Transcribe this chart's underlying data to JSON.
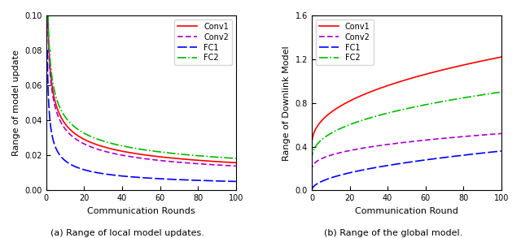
{
  "left": {
    "title": "(a) Range of local model updates.",
    "xlabel": "Communication Rounds",
    "ylabel": "Range of model update",
    "xlim": [
      0,
      100
    ],
    "ylim": [
      0,
      0.1
    ],
    "yticks": [
      0.0,
      0.02,
      0.04,
      0.06,
      0.08,
      0.1
    ],
    "xticks": [
      0,
      20,
      40,
      60,
      80,
      100
    ],
    "lines": [
      {
        "label": "Conv1",
        "color": "#ff0000",
        "linestyle": "-",
        "lw": 1.2,
        "a": 0.091,
        "k": 0.38
      },
      {
        "label": "Conv2",
        "color": "#aa00cc",
        "linestyle": "--",
        "lw": 1.2,
        "a": 0.088,
        "k": 0.4,
        "dashes": [
          4,
          2
        ]
      },
      {
        "label": "FC1",
        "color": "#0000ff",
        "linestyle": "--",
        "lw": 1.2,
        "a": 0.056,
        "k": 0.52,
        "dashes": [
          7,
          2
        ]
      },
      {
        "label": "FC2",
        "color": "#00bb00",
        "linestyle": "-.",
        "lw": 1.2,
        "a": 0.096,
        "k": 0.36
      }
    ]
  },
  "right": {
    "title": "(b) Range of the global model.",
    "xlabel": "Communication Round",
    "ylabel": "Range of Downlink Model",
    "xlim": [
      0,
      100
    ],
    "ylim": [
      0,
      1.6
    ],
    "yticks": [
      0,
      0.4,
      0.8,
      1.2,
      1.6
    ],
    "xticks": [
      0,
      20,
      40,
      60,
      80,
      100
    ],
    "lines": [
      {
        "label": "Conv1",
        "color": "#ff0000",
        "linestyle": "-",
        "lw": 1.2,
        "a": 1.22,
        "b": 0.4,
        "p": 0.42
      },
      {
        "label": "Conv2",
        "color": "#aa00cc",
        "linestyle": "--",
        "lw": 1.2,
        "a": 0.52,
        "b": 0.18,
        "p": 0.38,
        "dashes": [
          4,
          2
        ]
      },
      {
        "label": "FC1",
        "color": "#0000ff",
        "linestyle": "--",
        "lw": 1.2,
        "a": 0.36,
        "b": 0.0,
        "p": 0.5,
        "dashes": [
          7,
          2
        ]
      },
      {
        "label": "FC2",
        "color": "#00bb00",
        "linestyle": "-.",
        "lw": 1.2,
        "a": 0.9,
        "b": 0.27,
        "p": 0.4
      }
    ]
  }
}
